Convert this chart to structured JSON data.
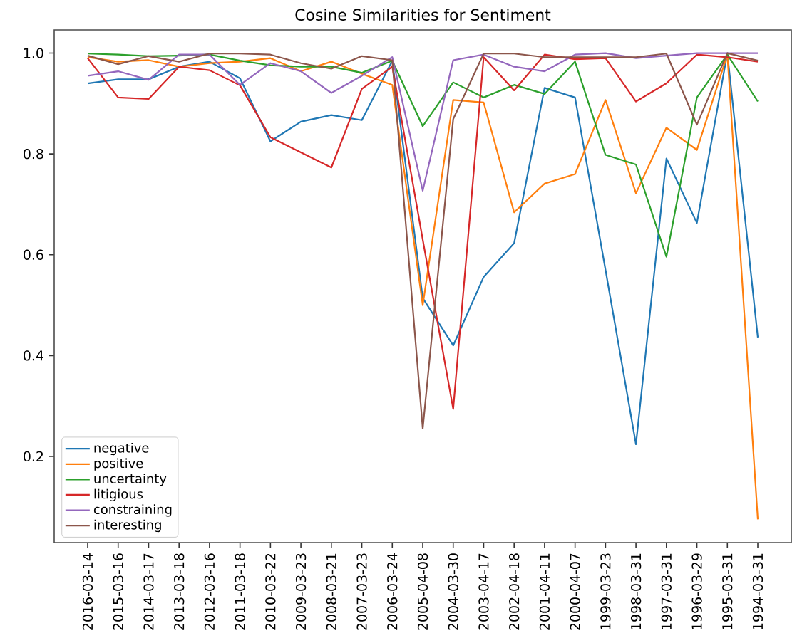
{
  "chart_data": {
    "type": "line",
    "title": "Cosine Similarities for Sentiment",
    "categories": [
      "2016-03-14",
      "2015-03-16",
      "2014-03-17",
      "2013-03-18",
      "2012-03-16",
      "2011-03-18",
      "2010-03-22",
      "2009-03-23",
      "2008-03-21",
      "2007-03-23",
      "2006-03-24",
      "2005-04-08",
      "2004-03-30",
      "2003-04-17",
      "2002-04-18",
      "2001-04-11",
      "2000-04-07",
      "1999-03-23",
      "1998-03-31",
      "1997-03-31",
      "1996-03-29",
      "1995-03-31",
      "1994-03-31"
    ],
    "series": [
      {
        "name": "negative",
        "color": "#1f77b4",
        "values": [
          0.94,
          0.948,
          0.948,
          0.973,
          0.983,
          0.95,
          0.825,
          0.864,
          0.877,
          0.867,
          0.985,
          0.514,
          0.42,
          0.556,
          0.623,
          0.931,
          0.912,
          0.57,
          0.224,
          0.791,
          0.663,
          1.0,
          0.436
        ]
      },
      {
        "name": "positive",
        "color": "#ff7f0e",
        "values": [
          0.992,
          0.983,
          0.986,
          0.973,
          0.98,
          0.983,
          0.99,
          0.964,
          0.983,
          0.959,
          0.937,
          0.5,
          0.907,
          0.902,
          0.684,
          0.741,
          0.76,
          0.907,
          0.722,
          0.852,
          0.808,
          0.997,
          0.075
        ]
      },
      {
        "name": "uncertainty",
        "color": "#2ca02c",
        "values": [
          0.999,
          0.997,
          0.994,
          0.995,
          0.997,
          0.985,
          0.976,
          0.973,
          0.973,
          0.961,
          0.985,
          0.855,
          0.942,
          0.912,
          0.937,
          0.919,
          0.983,
          0.798,
          0.779,
          0.596,
          0.912,
          0.997,
          0.904
        ]
      },
      {
        "name": "litigious",
        "color": "#d62728",
        "values": [
          0.99,
          0.912,
          0.909,
          0.973,
          0.966,
          0.936,
          0.833,
          0.803,
          0.773,
          0.929,
          0.973,
          0.63,
          0.294,
          0.992,
          0.926,
          0.997,
          0.988,
          0.99,
          0.904,
          0.94,
          0.997,
          0.992,
          0.983
        ]
      },
      {
        "name": "constraining",
        "color": "#9467bd",
        "values": [
          0.955,
          0.964,
          0.947,
          0.997,
          0.997,
          0.937,
          0.98,
          0.964,
          0.921,
          0.955,
          0.992,
          0.727,
          0.986,
          0.997,
          0.973,
          0.964,
          0.997,
          1.0,
          0.99,
          0.995,
          1.0,
          1.0,
          1.0
        ]
      },
      {
        "name": "interesting",
        "color": "#8c564b",
        "values": [
          0.995,
          0.978,
          0.994,
          0.983,
          0.999,
          0.999,
          0.997,
          0.98,
          0.969,
          0.994,
          0.986,
          0.255,
          0.869,
          0.999,
          0.999,
          0.992,
          0.992,
          0.992,
          0.992,
          0.999,
          0.858,
          1.0,
          0.985
        ]
      }
    ],
    "ylim": [
      0.029,
      1.046
    ],
    "yticks": [
      0.2,
      0.4,
      0.6,
      0.8,
      {
        "value": 1.0,
        "label": "1.0"
      }
    ],
    "legend": "bottom left",
    "line_style": "solid"
  }
}
